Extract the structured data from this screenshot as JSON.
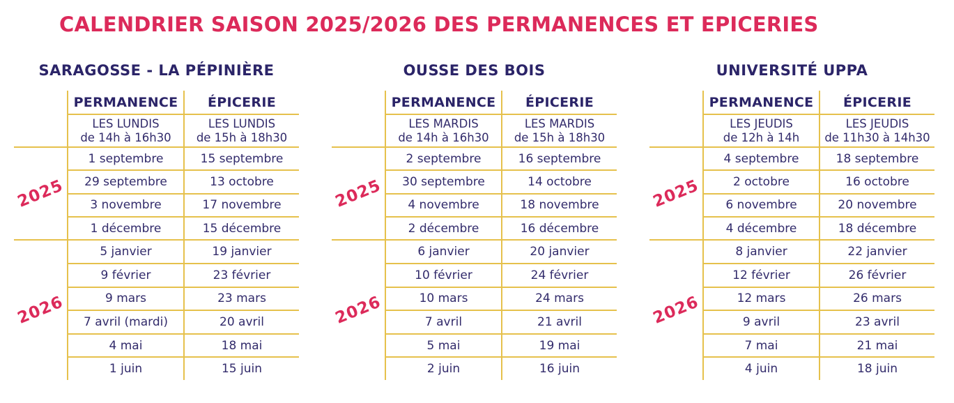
{
  "title": "CALENDRIER SAISON 2025/2026 DES PERMANENCES ET EPICERIES",
  "colors": {
    "accent_pink": "#DC2A5A",
    "text_navy": "#322B6B",
    "grid_gold": "#E6C14C",
    "background": "#FFFFFF"
  },
  "tables": [
    {
      "location": "SARAGOSSE - LA PÉPINIÈRE",
      "columns": [
        "PERMANENCE",
        "ÉPICERIE"
      ],
      "schedules": [
        [
          "LES LUNDIS",
          "de 14h à 16h30"
        ],
        [
          "LES LUNDIS",
          "de 15h à 18h30"
        ]
      ],
      "year_blocks": [
        {
          "year": "2025",
          "rows": [
            [
              "1 septembre",
              "15 septembre"
            ],
            [
              "29 septembre",
              "13 octobre"
            ],
            [
              "3 novembre",
              "17 novembre"
            ],
            [
              "1 décembre",
              "15 décembre"
            ]
          ]
        },
        {
          "year": "2026",
          "rows": [
            [
              "5 janvier",
              "19 janvier"
            ],
            [
              "9 février",
              "23 février"
            ],
            [
              "9 mars",
              "23 mars"
            ],
            [
              "7 avril (mardi)",
              "20 avril"
            ],
            [
              "4 mai",
              "18 mai"
            ],
            [
              "1 juin",
              "15 juin"
            ]
          ]
        }
      ]
    },
    {
      "location": "OUSSE DES BOIS",
      "columns": [
        "PERMANENCE",
        "ÉPICERIE"
      ],
      "schedules": [
        [
          "LES MARDIS",
          "de 14h à 16h30"
        ],
        [
          "LES MARDIS",
          "de 15h à 18h30"
        ]
      ],
      "year_blocks": [
        {
          "year": "2025",
          "rows": [
            [
              "2 septembre",
              "16 septembre"
            ],
            [
              "30 septembre",
              "14 octobre"
            ],
            [
              "4 novembre",
              "18 novembre"
            ],
            [
              "2 décembre",
              "16 décembre"
            ]
          ]
        },
        {
          "year": "2026",
          "rows": [
            [
              "6 janvier",
              "20 janvier"
            ],
            [
              "10 février",
              "24 février"
            ],
            [
              "10 mars",
              "24 mars"
            ],
            [
              "7 avril",
              "21 avril"
            ],
            [
              "5 mai",
              "19 mai"
            ],
            [
              "2 juin",
              "16 juin"
            ]
          ]
        }
      ]
    },
    {
      "location": "UNIVERSITÉ UPPA",
      "columns": [
        "PERMANENCE",
        "ÉPICERIE"
      ],
      "schedules": [
        [
          "LES JEUDIS",
          "de 12h à 14h"
        ],
        [
          "LES JEUDIS",
          "de 11h30 à 14h30"
        ]
      ],
      "year_blocks": [
        {
          "year": "2025",
          "rows": [
            [
              "4 septembre",
              "18 septembre"
            ],
            [
              "2 octobre",
              "16 octobre"
            ],
            [
              "6 novembre",
              "20 novembre"
            ],
            [
              "4 décembre",
              "18 décembre"
            ]
          ]
        },
        {
          "year": "2026",
          "rows": [
            [
              "8 janvier",
              "22 janvier"
            ],
            [
              "12 février",
              "26 février"
            ],
            [
              "12 mars",
              "26 mars"
            ],
            [
              "9 avril",
              "23 avril"
            ],
            [
              "7 mai",
              "21 mai"
            ],
            [
              "4 juin",
              "18 juin"
            ]
          ]
        }
      ]
    }
  ]
}
